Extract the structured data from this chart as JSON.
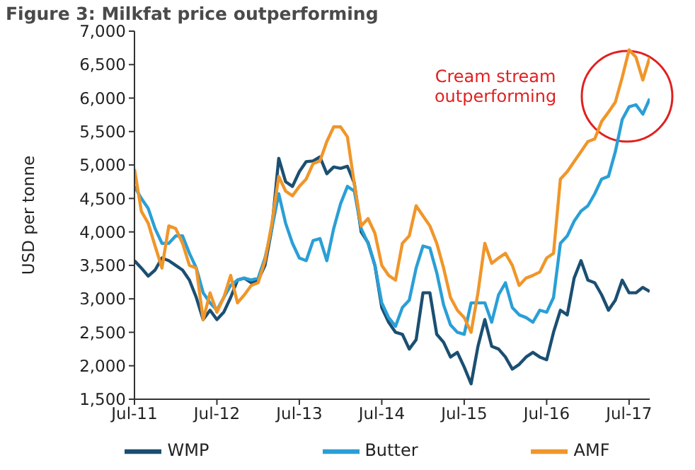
{
  "chart_data": {
    "type": "line",
    "title": "Figure 3: Milkfat price outperforming",
    "ylabel": "USD per tonne",
    "annotations": [
      "Cream stream outperforming"
    ],
    "x": [
      "2011-07",
      "2011-08",
      "2011-09",
      "2011-10",
      "2011-11",
      "2011-12",
      "2012-01",
      "2012-02",
      "2012-03",
      "2012-04",
      "2012-05",
      "2012-06",
      "2012-07",
      "2012-08",
      "2012-09",
      "2012-10",
      "2012-11",
      "2012-12",
      "2013-01",
      "2013-02",
      "2013-03",
      "2013-04",
      "2013-05",
      "2013-06",
      "2013-07",
      "2013-08",
      "2013-09",
      "2013-10",
      "2013-11",
      "2013-12",
      "2014-01",
      "2014-02",
      "2014-03",
      "2014-04",
      "2014-05",
      "2014-06",
      "2014-07",
      "2014-08",
      "2014-09",
      "2014-10",
      "2014-11",
      "2014-12",
      "2015-01",
      "2015-02",
      "2015-03",
      "2015-04",
      "2015-05",
      "2015-06",
      "2015-07",
      "2015-08",
      "2015-09",
      "2015-10",
      "2015-11",
      "2015-12",
      "2016-01",
      "2016-02",
      "2016-03",
      "2016-04",
      "2016-05",
      "2016-06",
      "2016-07",
      "2016-08",
      "2016-09",
      "2016-10",
      "2016-11",
      "2016-12",
      "2017-01",
      "2017-02",
      "2017-03",
      "2017-04",
      "2017-05",
      "2017-06",
      "2017-07",
      "2017-08",
      "2017-09",
      "2017-10"
    ],
    "series": [
      {
        "name": "WMP",
        "color": "#1b4f72",
        "values": [
          3570,
          3460,
          3340,
          3430,
          3610,
          3570,
          3500,
          3430,
          3280,
          3020,
          2690,
          2830,
          2690,
          2800,
          3020,
          3280,
          3310,
          3240,
          3280,
          3500,
          4050,
          5100,
          4750,
          4680,
          4900,
          5050,
          5060,
          5120,
          4870,
          4970,
          4950,
          4980,
          4730,
          4000,
          3840,
          3500,
          2870,
          2650,
          2500,
          2470,
          2250,
          2390,
          3090,
          3090,
          2470,
          2350,
          2130,
          2200,
          1980,
          1730,
          2290,
          2690,
          2290,
          2250,
          2130,
          1950,
          2020,
          2130,
          2200,
          2130,
          2090,
          2500,
          2830,
          2760,
          3310,
          3570,
          3280,
          3240,
          3060,
          2830,
          2980,
          3280,
          3090,
          3090,
          3170,
          3110
        ]
      },
      {
        "name": "Butter",
        "color": "#2a9fd6",
        "values": [
          4680,
          4500,
          4350,
          4050,
          3830,
          3830,
          3940,
          3940,
          3680,
          3460,
          3090,
          2940,
          2830,
          3020,
          3200,
          3280,
          3310,
          3280,
          3310,
          3610,
          4050,
          4570,
          4130,
          3830,
          3610,
          3570,
          3870,
          3900,
          3570,
          4050,
          4420,
          4680,
          4610,
          4050,
          3830,
          3500,
          2940,
          2720,
          2590,
          2870,
          2980,
          3460,
          3790,
          3760,
          3390,
          2910,
          2610,
          2500,
          2470,
          2940,
          2940,
          2940,
          2650,
          3060,
          3240,
          2870,
          2760,
          2720,
          2650,
          2830,
          2800,
          3020,
          3830,
          3940,
          4160,
          4310,
          4390,
          4570,
          4790,
          4830,
          5200,
          5680,
          5870,
          5900,
          5760,
          5990
        ]
      },
      {
        "name": "AMF",
        "color": "#f0962a",
        "values": [
          4940,
          4310,
          4130,
          3790,
          3460,
          4090,
          4050,
          3830,
          3500,
          3460,
          2690,
          3090,
          2800,
          3020,
          3350,
          2940,
          3060,
          3200,
          3240,
          3570,
          4130,
          4830,
          4610,
          4540,
          4680,
          4790,
          5020,
          5060,
          5350,
          5570,
          5570,
          5420,
          4720,
          4090,
          4200,
          3980,
          3500,
          3350,
          3280,
          3830,
          3940,
          4390,
          4240,
          4090,
          3830,
          3460,
          3020,
          2830,
          2720,
          2500,
          3090,
          3830,
          3530,
          3610,
          3680,
          3500,
          3200,
          3310,
          3350,
          3400,
          3610,
          3680,
          4790,
          4900,
          5050,
          5200,
          5350,
          5390,
          5650,
          5790,
          5940,
          6310,
          6720,
          6610,
          6270,
          6610
        ]
      }
    ],
    "xlim": [
      "2011-07",
      "2017-10"
    ],
    "xticks": [
      {
        "value": "2011-07",
        "label": "Jul-11"
      },
      {
        "value": "2012-07",
        "label": "Jul-12"
      },
      {
        "value": "2013-07",
        "label": "Jul-13"
      },
      {
        "value": "2014-07",
        "label": "Jul-14"
      },
      {
        "value": "2015-07",
        "label": "Jul-15"
      },
      {
        "value": "2016-07",
        "label": "Jul-16"
      },
      {
        "value": "2017-07",
        "label": "Jul-17"
      }
    ],
    "ylim": [
      1500,
      7000
    ],
    "yticks": [
      {
        "value": 1500,
        "label": "1,500"
      },
      {
        "value": 2000,
        "label": "2,000"
      },
      {
        "value": 2500,
        "label": "2,500"
      },
      {
        "value": 3000,
        "label": "3,000"
      },
      {
        "value": 3500,
        "label": "3,500"
      },
      {
        "value": 4000,
        "label": "4,000"
      },
      {
        "value": 4500,
        "label": "4,500"
      },
      {
        "value": 5000,
        "label": "5,000"
      },
      {
        "value": 5500,
        "label": "5,500"
      },
      {
        "value": 6000,
        "label": "6,000"
      },
      {
        "value": 6500,
        "label": "6,500"
      },
      {
        "value": 7000,
        "label": "7,000"
      }
    ],
    "grid": false,
    "legend": "bottom",
    "marker": "none",
    "line_style": "solid"
  }
}
